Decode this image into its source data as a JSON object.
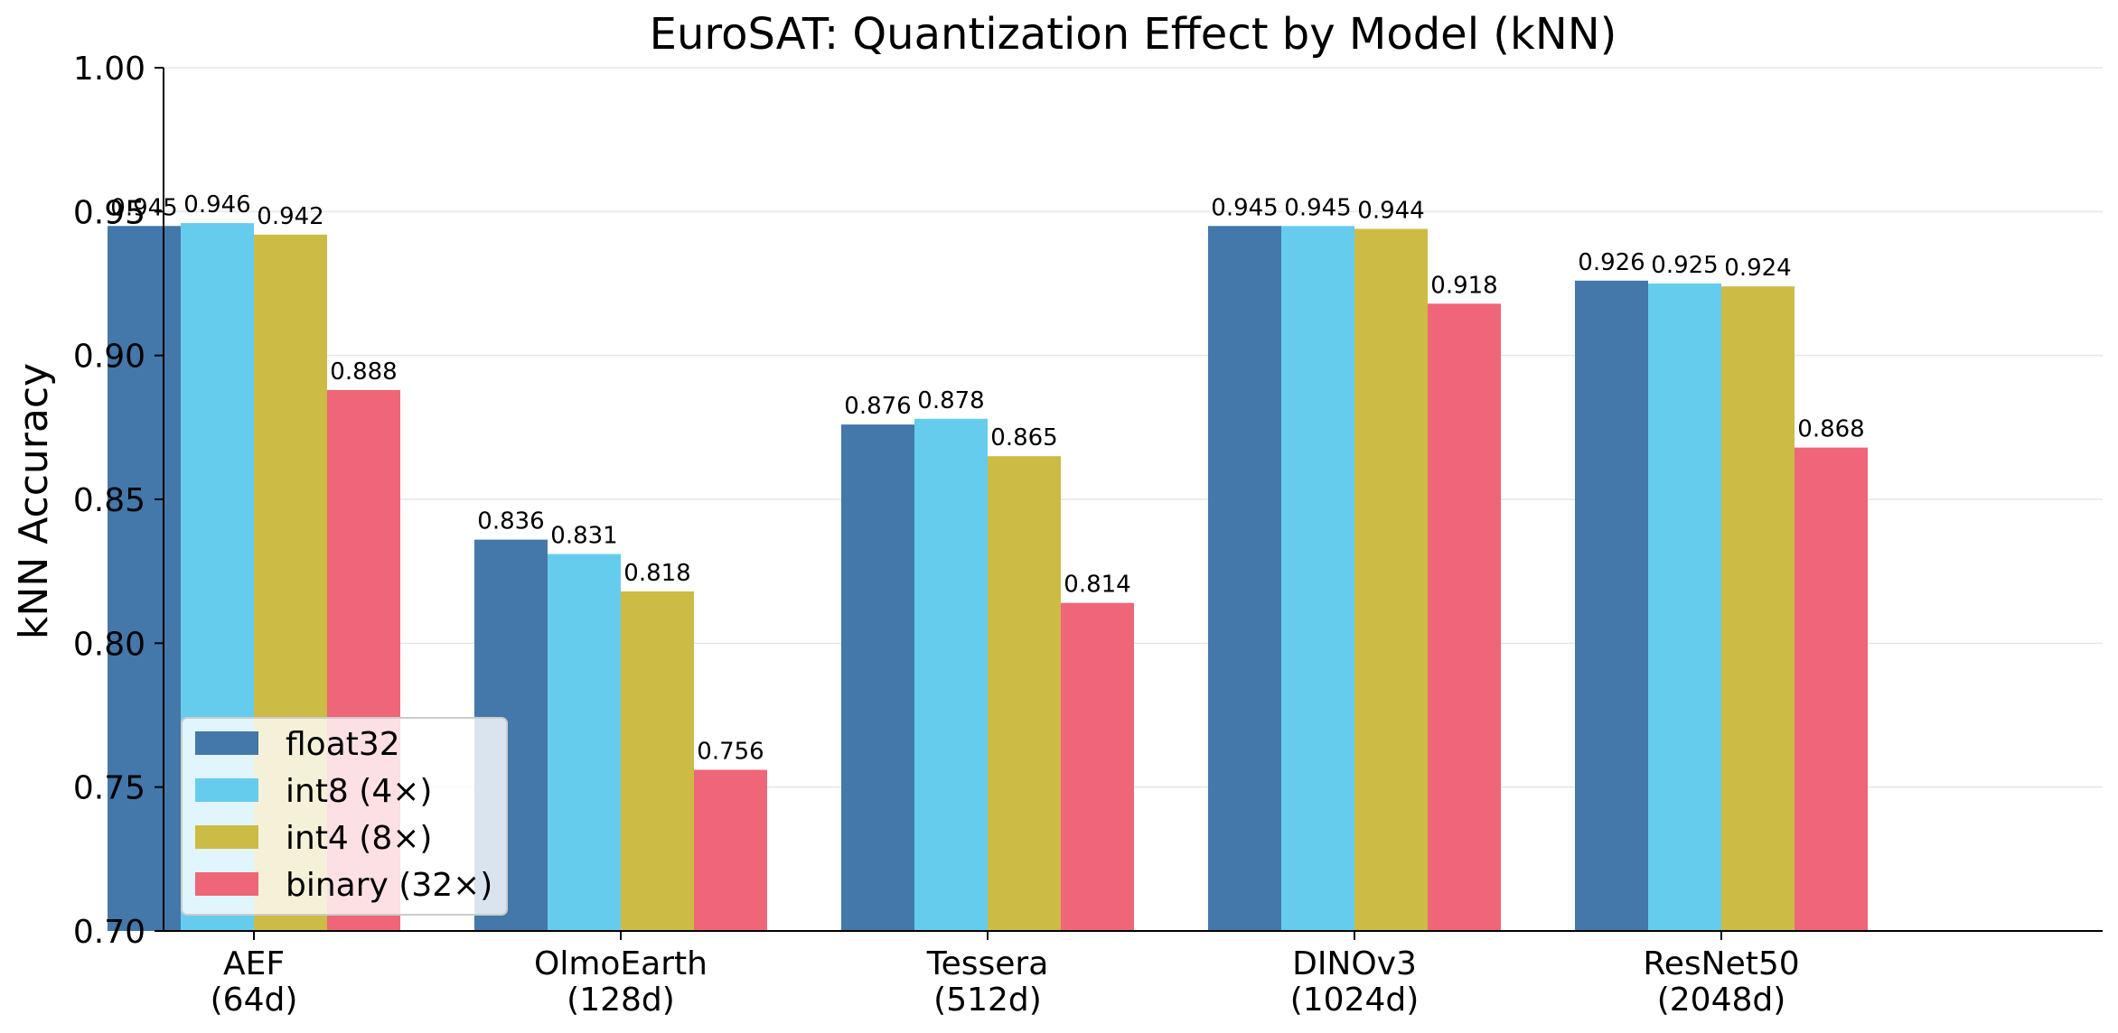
{
  "chart_data": {
    "type": "bar",
    "title": "EuroSAT: Quantization Effect by Model (kNN)",
    "xlabel": "",
    "ylabel": "kNN Accuracy",
    "ylim": [
      0.7,
      1.0
    ],
    "yticks": [
      "0.70",
      "0.75",
      "0.80",
      "0.85",
      "0.90",
      "0.95",
      "1.00"
    ],
    "categories": [
      [
        "AEF",
        "(64d)"
      ],
      [
        "OlmoEarth",
        "(128d)"
      ],
      [
        "Tessera",
        "(512d)"
      ],
      [
        "DINOv3",
        "(1024d)"
      ],
      [
        "ResNet50",
        "(2048d)"
      ]
    ],
    "series": [
      {
        "name": "float32",
        "color": "#4477aa",
        "values": [
          0.945,
          0.836,
          0.876,
          0.945,
          0.926
        ]
      },
      {
        "name": "int8 (4×)",
        "color": "#66ccee",
        "values": [
          0.946,
          0.831,
          0.878,
          0.945,
          0.925
        ]
      },
      {
        "name": "int4 (8×)",
        "color": "#ccbb44",
        "values": [
          0.942,
          0.818,
          0.865,
          0.944,
          0.924
        ]
      },
      {
        "name": "binary (32×)",
        "color": "#ee6677",
        "values": [
          0.888,
          0.756,
          0.814,
          0.918,
          0.868
        ]
      }
    ],
    "value_labels": [
      [
        "0.945",
        "0.836",
        "0.876",
        "0.945",
        "0.926"
      ],
      [
        "0.946",
        "0.831",
        "0.878",
        "0.945",
        "0.925"
      ],
      [
        "0.942",
        "0.818",
        "0.865",
        "0.944",
        "0.924"
      ],
      [
        "0.888",
        "0.756",
        "0.814",
        "0.918",
        "0.868"
      ]
    ],
    "grid": "y",
    "legend_position": "lower-left"
  }
}
